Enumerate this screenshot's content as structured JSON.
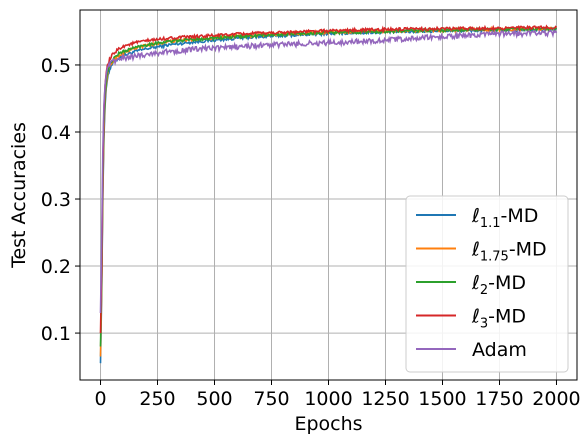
{
  "chart_data": {
    "type": "line",
    "title": "",
    "xlabel": "Epochs",
    "ylabel": "Test Accuracies",
    "xlim": [
      -90,
      2090
    ],
    "ylim": [
      0.03,
      0.582
    ],
    "xticks": [
      0,
      250,
      500,
      750,
      1000,
      1250,
      1500,
      1750,
      2000
    ],
    "yticks": [
      0.1,
      0.2,
      0.3,
      0.4,
      0.5
    ],
    "xtick_labels": [
      "0",
      "250",
      "500",
      "750",
      "1000",
      "1250",
      "1500",
      "1750",
      "2000"
    ],
    "ytick_labels": [
      "0.1",
      "0.2",
      "0.3",
      "0.4",
      "0.5"
    ],
    "grid": true,
    "legend_position": "lower-right",
    "series": [
      {
        "name": "ℓ1.1-MD",
        "name_base": "ℓ",
        "name_sub": "1.1",
        "name_suffix": "-MD",
        "color": "#1f77b4",
        "x": [
          0,
          5,
          10,
          15,
          20,
          25,
          30,
          40,
          50,
          60,
          80,
          100,
          150,
          200,
          250,
          300,
          400,
          500,
          600,
          750,
          1000,
          1250,
          1500,
          1750,
          2000
        ],
        "y": [
          0.055,
          0.16,
          0.3,
          0.39,
          0.44,
          0.465,
          0.48,
          0.493,
          0.5,
          0.505,
          0.51,
          0.514,
          0.52,
          0.524,
          0.527,
          0.53,
          0.534,
          0.537,
          0.54,
          0.543,
          0.547,
          0.549,
          0.551,
          0.552,
          0.553
        ]
      },
      {
        "name": "ℓ1.75-MD",
        "name_base": "ℓ",
        "name_sub": "1.75",
        "name_suffix": "-MD",
        "color": "#ff7f0e",
        "x": [
          0,
          5,
          10,
          15,
          20,
          25,
          30,
          40,
          50,
          60,
          80,
          100,
          150,
          200,
          250,
          300,
          400,
          500,
          600,
          750,
          1000,
          1250,
          1500,
          1750,
          2000
        ],
        "y": [
          0.065,
          0.17,
          0.31,
          0.4,
          0.45,
          0.47,
          0.485,
          0.497,
          0.503,
          0.508,
          0.514,
          0.518,
          0.525,
          0.529,
          0.532,
          0.535,
          0.538,
          0.541,
          0.543,
          0.546,
          0.549,
          0.551,
          0.552,
          0.553,
          0.554
        ]
      },
      {
        "name": "ℓ2-MD",
        "name_base": "ℓ",
        "name_sub": "2",
        "name_suffix": "-MD",
        "color": "#2ca02c",
        "x": [
          0,
          5,
          10,
          15,
          20,
          25,
          30,
          40,
          50,
          60,
          80,
          100,
          150,
          200,
          250,
          300,
          400,
          500,
          600,
          750,
          1000,
          1250,
          1500,
          1750,
          2000
        ],
        "y": [
          0.08,
          0.18,
          0.32,
          0.41,
          0.455,
          0.475,
          0.488,
          0.5,
          0.506,
          0.511,
          0.517,
          0.52,
          0.526,
          0.53,
          0.533,
          0.535,
          0.538,
          0.54,
          0.542,
          0.545,
          0.548,
          0.55,
          0.552,
          0.553,
          0.554
        ]
      },
      {
        "name": "ℓ3-MD",
        "name_base": "ℓ",
        "name_sub": "3",
        "name_suffix": "-MD",
        "color": "#d62728",
        "x": [
          0,
          5,
          10,
          15,
          20,
          25,
          30,
          40,
          50,
          60,
          80,
          100,
          150,
          200,
          250,
          300,
          400,
          500,
          600,
          750,
          1000,
          1250,
          1500,
          1750,
          2000
        ],
        "y": [
          0.1,
          0.2,
          0.34,
          0.43,
          0.47,
          0.488,
          0.498,
          0.508,
          0.514,
          0.518,
          0.524,
          0.528,
          0.533,
          0.536,
          0.538,
          0.54,
          0.542,
          0.544,
          0.546,
          0.548,
          0.551,
          0.553,
          0.554,
          0.555,
          0.556
        ]
      },
      {
        "name": "Adam",
        "name_base": "Adam",
        "name_sub": "",
        "name_suffix": "",
        "color": "#9467bd",
        "x": [
          0,
          5,
          10,
          15,
          20,
          25,
          30,
          40,
          50,
          60,
          80,
          100,
          150,
          200,
          250,
          300,
          400,
          500,
          600,
          750,
          1000,
          1250,
          1500,
          1750,
          2000
        ],
        "y": [
          0.13,
          0.24,
          0.37,
          0.44,
          0.47,
          0.485,
          0.493,
          0.5,
          0.504,
          0.506,
          0.508,
          0.51,
          0.513,
          0.516,
          0.518,
          0.52,
          0.523,
          0.525,
          0.527,
          0.53,
          0.533,
          0.537,
          0.542,
          0.546,
          0.548
        ]
      }
    ]
  }
}
